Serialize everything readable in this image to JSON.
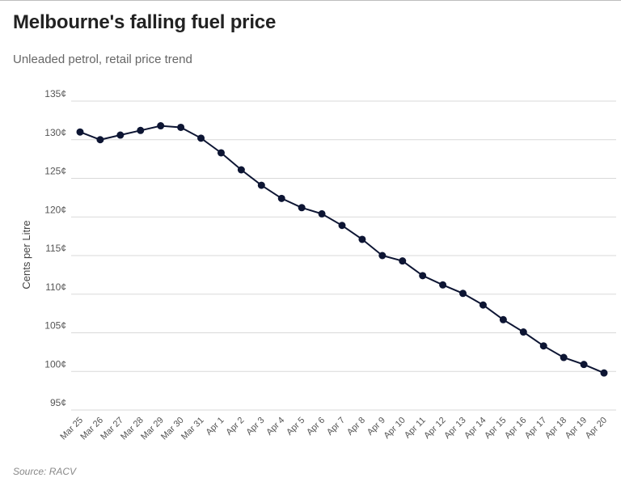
{
  "header": {
    "title": "Melbourne's falling fuel price",
    "subtitle": "Unleaded petrol, retail price trend"
  },
  "footer": {
    "source": "Source: RACV"
  },
  "colors": {
    "line": "#0d1533",
    "grid": "#d9d9d9"
  },
  "chart_data": {
    "type": "line",
    "title": "Melbourne's falling fuel price",
    "subtitle": "Unleaded petrol, retail price trend",
    "xlabel": "",
    "ylabel": "Cents per Litre",
    "ylim": [
      95,
      135
    ],
    "yticks": [
      95,
      100,
      105,
      110,
      115,
      120,
      125,
      130,
      135
    ],
    "ytick_labels": [
      "95¢",
      "100¢",
      "105¢",
      "110¢",
      "115¢",
      "120¢",
      "125¢",
      "130¢",
      "135¢"
    ],
    "grid": true,
    "categories": [
      "Mar 25",
      "Mar 26",
      "Mar 27",
      "Mar 28",
      "Mar 29",
      "Mar 30",
      "Mar 31",
      "Apr 1",
      "Apr 2",
      "Apr 3",
      "Apr 4",
      "Apr 5",
      "Apr 6",
      "Apr 7",
      "Apr 8",
      "Apr 9",
      "Apr 10",
      "Apr 11",
      "Apr 12",
      "Apr 13",
      "Apr 14",
      "Apr 15",
      "Apr 16",
      "Apr 17",
      "Apr 18",
      "Apr 19",
      "Apr 20"
    ],
    "series": [
      {
        "values": [
          131.0,
          130.0,
          130.6,
          131.2,
          131.8,
          131.6,
          130.2,
          128.3,
          126.1,
          124.1,
          122.4,
          121.2,
          120.4,
          118.9,
          117.1,
          115.0,
          114.3,
          112.4,
          111.2,
          110.1,
          108.6,
          106.7,
          105.1,
          103.3,
          101.8,
          100.9,
          99.8
        ]
      }
    ]
  }
}
